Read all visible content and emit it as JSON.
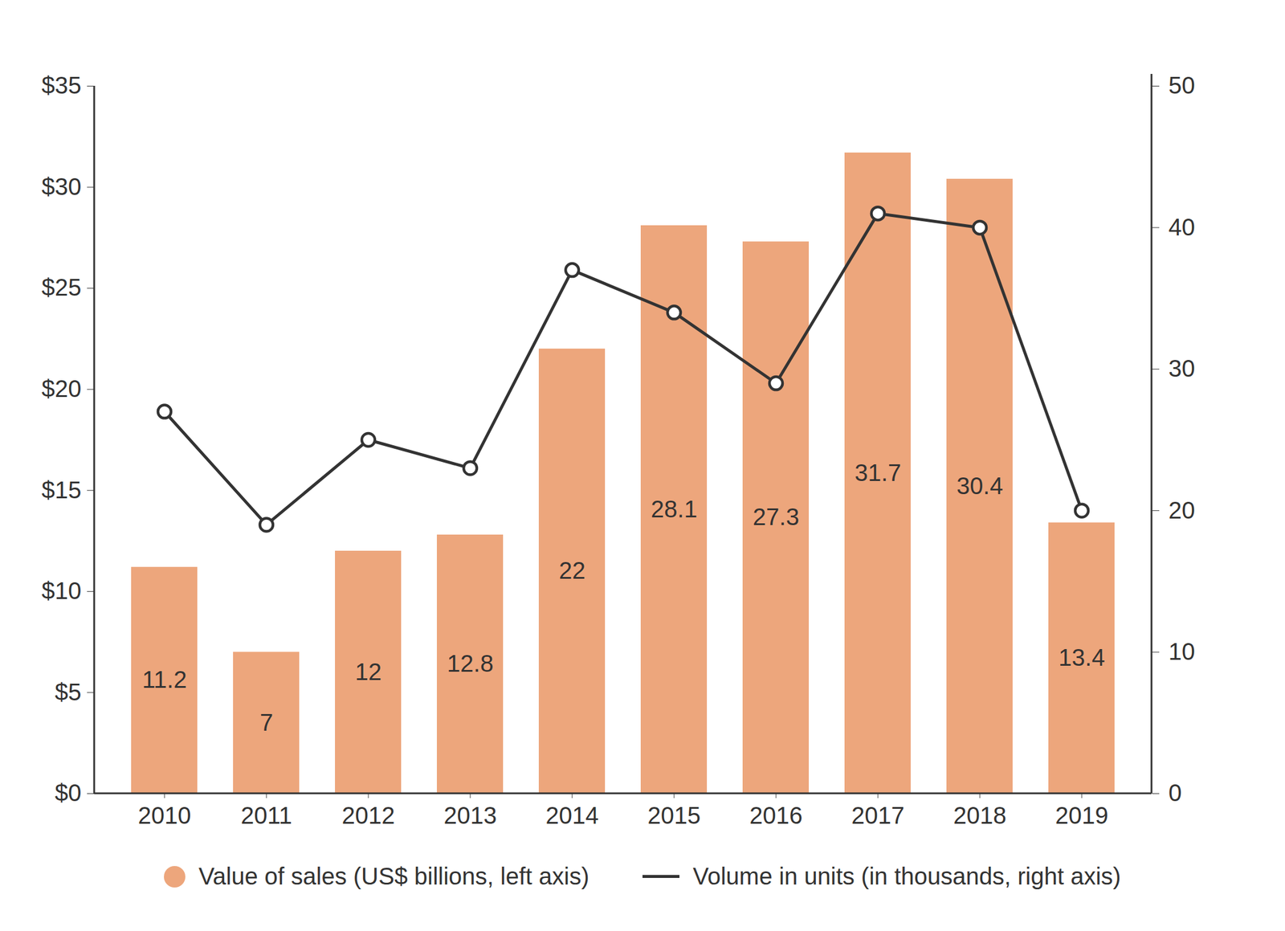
{
  "chart_data": {
    "type": "bar",
    "categories": [
      "2010",
      "2011",
      "2012",
      "2013",
      "2014",
      "2015",
      "2016",
      "2017",
      "2018",
      "2019"
    ],
    "series": [
      {
        "name": "Value of sales (US$ billions, left axis)",
        "type": "bar",
        "color": "#eda67c",
        "values": [
          11.2,
          7,
          12,
          12.8,
          22,
          28.1,
          27.3,
          31.7,
          30.4,
          13.4
        ]
      },
      {
        "name": "Volume in units (in thousands, right axis)",
        "type": "line",
        "color": "#333333",
        "marker": "circle",
        "axis": "y2",
        "values": [
          27,
          19,
          25,
          23,
          37,
          34,
          29,
          41,
          40,
          20
        ]
      }
    ],
    "ylim": [
      0,
      35
    ],
    "yticks": [
      {
        "value": 0,
        "label": "$0"
      },
      {
        "value": 5,
        "label": "$5"
      },
      {
        "value": 10,
        "label": "$10"
      },
      {
        "value": 15,
        "label": "$15"
      },
      {
        "value": 20,
        "label": "$20"
      },
      {
        "value": 25,
        "label": "$25"
      },
      {
        "value": 30,
        "label": "$30"
      },
      {
        "value": 35,
        "label": "$35"
      }
    ],
    "y2lim": [
      0,
      50
    ],
    "y2ticks": [
      0,
      10,
      20,
      30,
      40,
      50
    ],
    "data_labels": true,
    "legend": "bottom"
  }
}
